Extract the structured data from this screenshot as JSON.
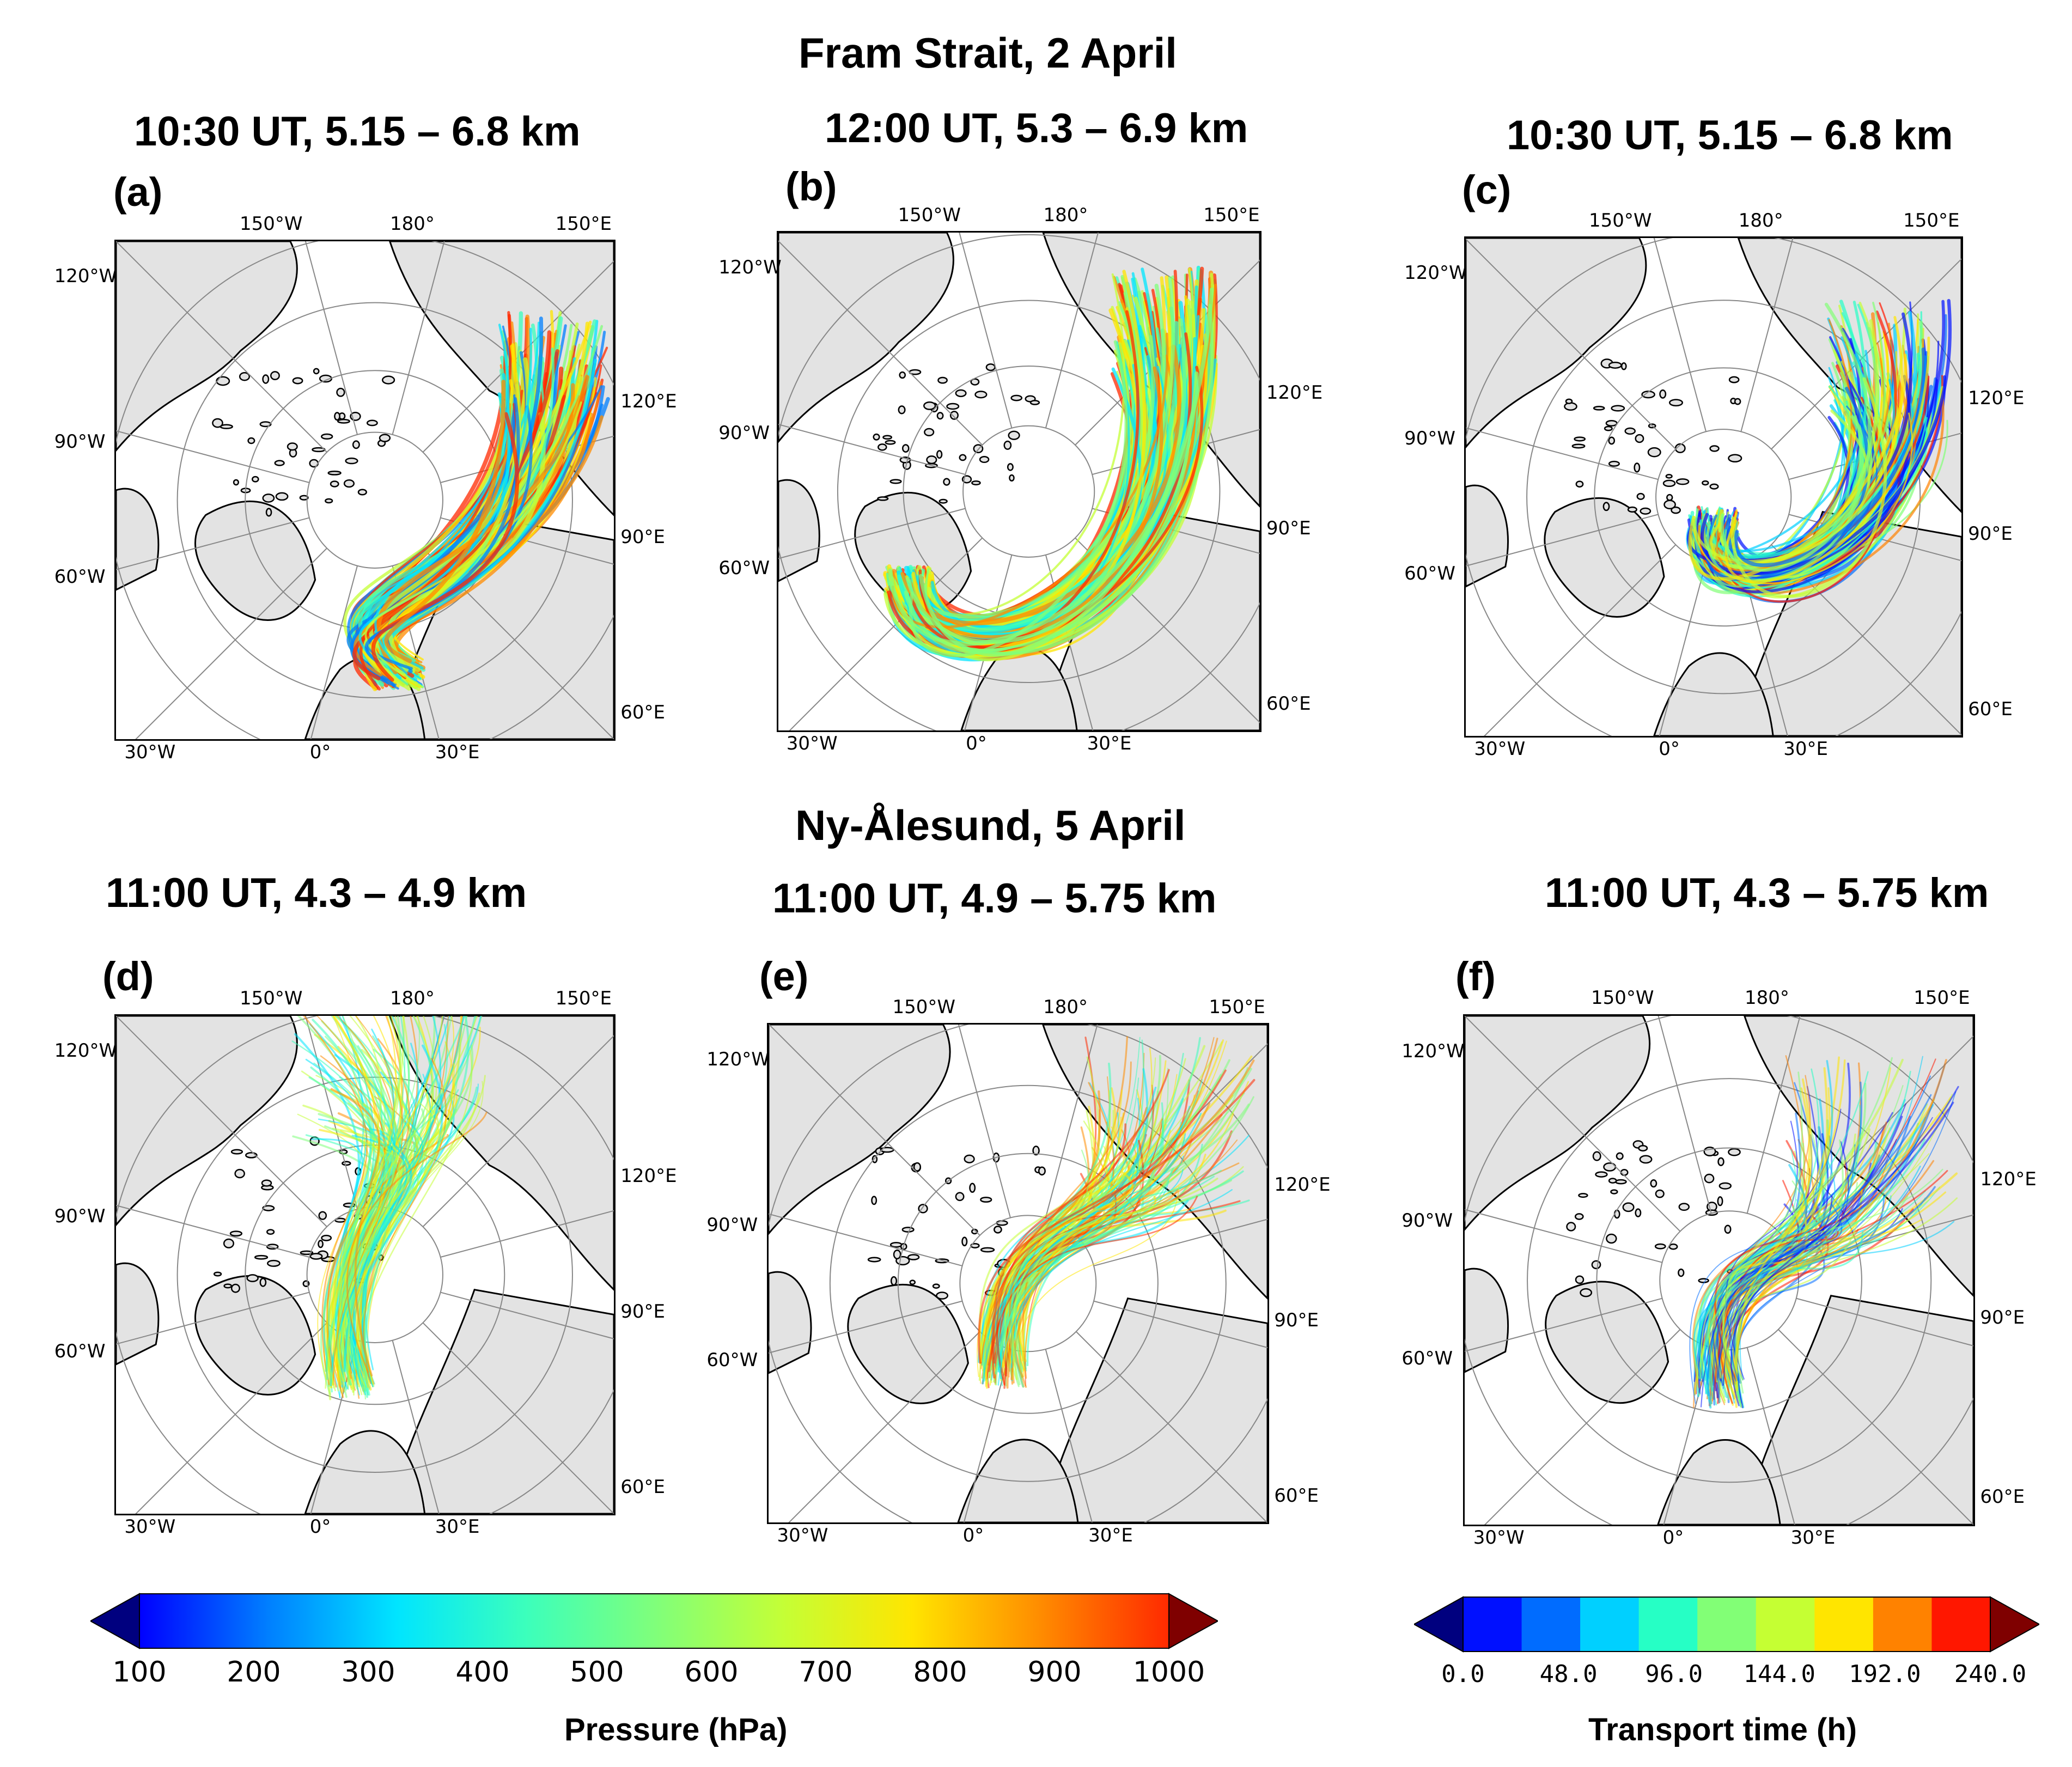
{
  "figure": {
    "groups": [
      {
        "title": "Fram Strait, 2 April"
      },
      {
        "title": "Ny-Ålesund, 5 April"
      }
    ],
    "panels": [
      {
        "letter": "(a)",
        "title": "10:30 UT, 5.15 – 6.8 km",
        "colorscale": "pressure"
      },
      {
        "letter": "(b)",
        "title": "12:00 UT, 5.3 – 6.9 km",
        "colorscale": "pressure"
      },
      {
        "letter": "(c)",
        "title": "10:30 UT, 5.15 – 6.8 km",
        "colorscale": "time"
      },
      {
        "letter": "(d)",
        "title": "11:00 UT, 4.3 – 4.9 km",
        "colorscale": "pressure"
      },
      {
        "letter": "(e)",
        "title": "11:00 UT, 4.9 – 5.75 km",
        "colorscale": "pressure"
      },
      {
        "letter": "(f)",
        "title": "11:00 UT, 4.3 – 5.75 km",
        "colorscale": "time"
      }
    ],
    "map_labels": {
      "lon_150w": "150°W",
      "lon_180": "180°",
      "lon_150e": "150°E",
      "lon_120w": "120°W",
      "lon_120e": "120°E",
      "lon_90w": "90°W",
      "lon_90e": "90°E",
      "lon_60w": "60°W",
      "lon_60e": "60°E",
      "lon_30w": "30°W",
      "lon_0": "0°",
      "lon_30e": "30°E"
    },
    "colorbar_pressure": {
      "label": "Pressure (hPa)",
      "ticks": [
        "100",
        "200",
        "300",
        "400",
        "500",
        "600",
        "700",
        "800",
        "900",
        "1000"
      ],
      "colors": [
        "#00007f",
        "#0000ff",
        "#007fff",
        "#00e5ff",
        "#3bffbc",
        "#7fff7b",
        "#c4ff36",
        "#ffe500",
        "#ff8c00",
        "#ff2a00",
        "#7f0000"
      ]
    },
    "colorbar_time": {
      "label": "Transport time (h)",
      "ticks": [
        "0.0",
        "48.0",
        "96.0",
        "144.0",
        "192.0",
        "240.0"
      ],
      "colors": [
        "#00007f",
        "#0010ff",
        "#006cff",
        "#00d0ff",
        "#26ffc5",
        "#82ff76",
        "#c5ff33",
        "#ffe500",
        "#ff8200",
        "#ff1700",
        "#7f0000"
      ]
    }
  }
}
